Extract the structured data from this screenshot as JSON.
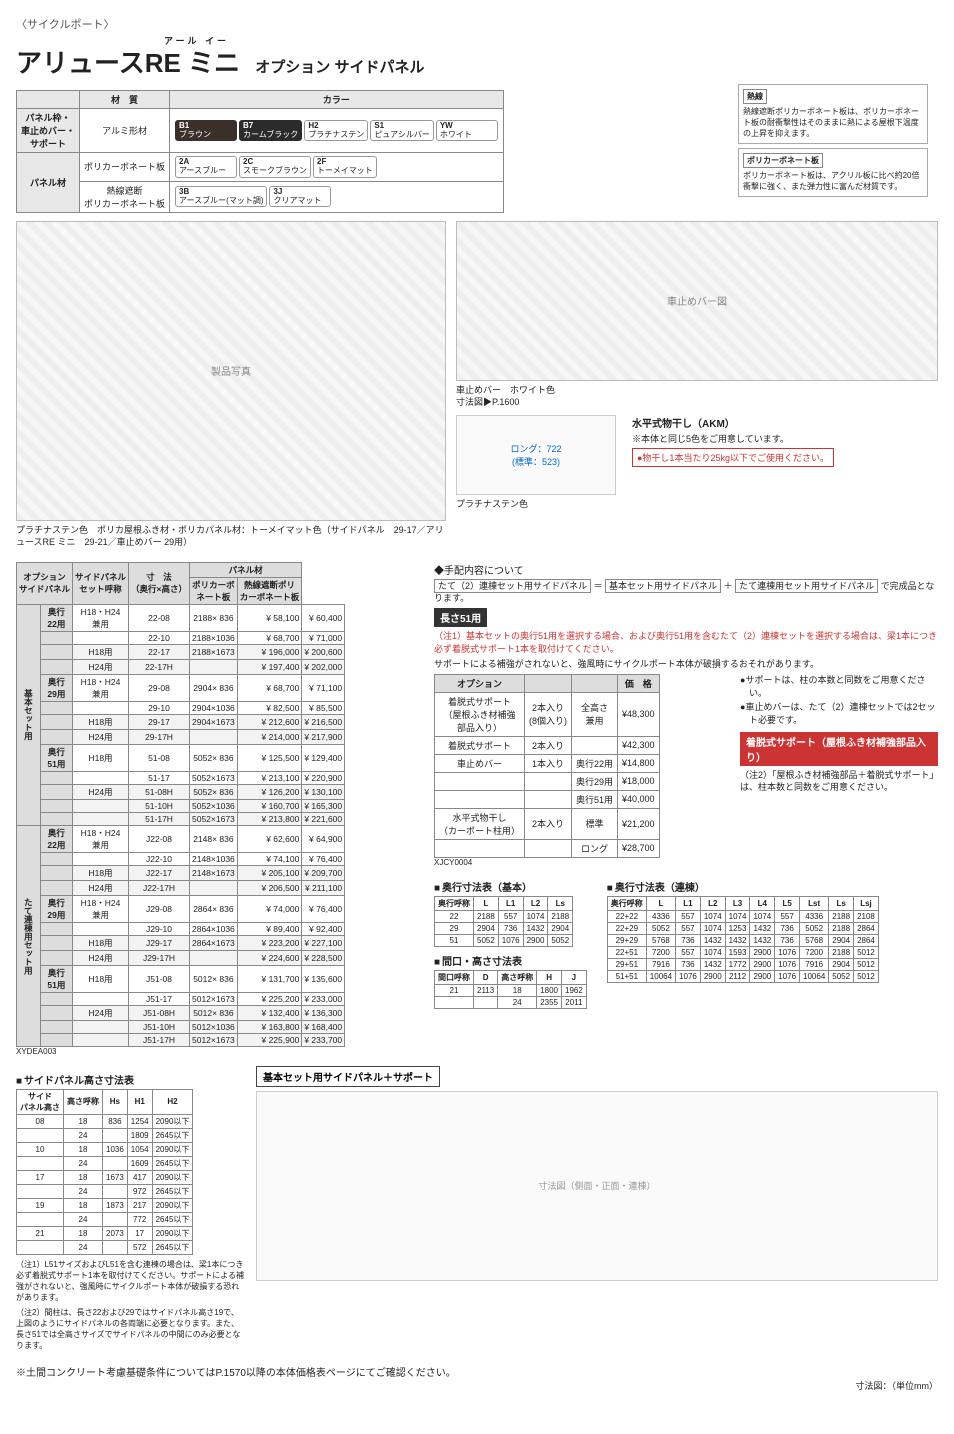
{
  "category": "〈サイクルポート〉",
  "title_ruby": "アール イー",
  "title_main": "アリュースRE ミニ",
  "title_sub": "オプション サイドパネル",
  "mat_table": {
    "headers": [
      "",
      "材　質",
      "カラー"
    ],
    "rows": [
      {
        "label": "パネル枠・\n車止めバー・\nサポート",
        "material": "アルミ形材",
        "chips": [
          {
            "code": "B1",
            "name": "ブラウン",
            "dark": true
          },
          {
            "code": "B7",
            "name": "カームブラック",
            "dark": true
          },
          {
            "code": "H2",
            "name": "プラチナステン"
          },
          {
            "code": "S1",
            "name": "ピュアシルバー"
          },
          {
            "code": "YW",
            "name": "ホワイト"
          }
        ]
      },
      {
        "label": "パネル材",
        "material": "ポリカーボネート板",
        "chips": [
          {
            "code": "2A",
            "name": "アースブルー"
          },
          {
            "code": "2C",
            "name": "スモークブラウン"
          },
          {
            "code": "2F",
            "name": "トーメイマット"
          }
        ]
      },
      {
        "label": "",
        "material": "熱線遮断\nポリカーボネート板",
        "chips": [
          {
            "code": "3B",
            "name": "アースブルー(マット調)"
          },
          {
            "code": "3J",
            "name": "クリアマット"
          }
        ]
      }
    ]
  },
  "legend": [
    {
      "title": "熱線",
      "body": "熱線遮断ポリカーボネート板は、ポリカーボネート板の耐衝撃性はそのままに熱による屋根下温度の上昇を抑えます。"
    },
    {
      "title": "ポリカーボネート板",
      "body": "ポリカーボネート板は、アクリル板に比べ約20倍衝撃に強く、また弾力性に富んだ材質です。"
    }
  ],
  "hero_caption": "プラチナステン色　ポリカ屋根ふき材・ポリカパネル材：トーメイマット色（サイドパネル　29-17／アリュースRE ミニ　29-21／車止めバー 29用）",
  "barstop": {
    "label": "車止めバー",
    "color": "ホワイト色",
    "ref": "寸法図▶P.1600"
  },
  "hoshi": {
    "title": "水平式物干し（AKM）",
    "note": "※本体と同じ5色をご用意しています。",
    "long": "ロング：722",
    "std": "(標準：523)",
    "color": "プラチナステン色",
    "warn": "●物干し1本当たり25kg以下でご使用ください。"
  },
  "price_header": {
    "opt": "オプション\nサイドパネル",
    "set": "サイドパネル\nセット呼称",
    "dim": "寸　法\n（奥行×高さ）",
    "panel": "パネル材",
    "pc": "ポリカーボ\nネート板",
    "hc": "熱線遮断ポリ\nカーボネート板"
  },
  "price_sections": [
    {
      "group": "基本セット用",
      "rows": [
        {
          "d": "奥行\n22用",
          "h": "H18・H24\n兼用",
          "n": "22-08",
          "dim": "2188× 836",
          "p": "58,100",
          "q": "60,400"
        },
        {
          "d": "",
          "h": "",
          "n": "22-10",
          "dim": "2188×1036",
          "p": "68,700",
          "q": "71,000"
        },
        {
          "d": "",
          "h": "H18用",
          "n": "22-17",
          "dim": "2188×1673",
          "p": "196,000",
          "q": "200,600",
          "gray": true
        },
        {
          "d": "",
          "h": "H24用",
          "n": "22-17H",
          "dim": "",
          "p": "197,400",
          "q": "202,000",
          "gray": true
        },
        {
          "d": "奥行\n29用",
          "h": "H18・H24\n兼用",
          "n": "29-08",
          "dim": "2904× 836",
          "p": "68,700",
          "q": "71,100"
        },
        {
          "d": "",
          "h": "",
          "n": "29-10",
          "dim": "2904×1036",
          "p": "82,500",
          "q": "85,500"
        },
        {
          "d": "",
          "h": "H18用",
          "n": "29-17",
          "dim": "2904×1673",
          "p": "212,600",
          "q": "216,500",
          "gray": true
        },
        {
          "d": "",
          "h": "H24用",
          "n": "29-17H",
          "dim": "",
          "p": "214,000",
          "q": "217,900",
          "gray": true
        },
        {
          "d": "奥行\n51用",
          "h": "H18用",
          "n": "51-08",
          "dim": "5052× 836",
          "p": "125,500",
          "q": "129,400"
        },
        {
          "d": "",
          "h": "",
          "n": "51-17",
          "dim": "5052×1673",
          "p": "213,100",
          "q": "220,900"
        },
        {
          "d": "",
          "h": "H24用",
          "n": "51-08H",
          "dim": "5052× 836",
          "p": "126,200",
          "q": "130,100",
          "gray": true
        },
        {
          "d": "",
          "h": "",
          "n": "51-10H",
          "dim": "5052×1036",
          "p": "160,700",
          "q": "165,300",
          "gray": true
        },
        {
          "d": "",
          "h": "",
          "n": "51-17H",
          "dim": "5052×1673",
          "p": "213,800",
          "q": "221,600",
          "gray": true
        }
      ]
    },
    {
      "group": "たて連棟用セット用",
      "rows": [
        {
          "d": "奥行\n22用",
          "h": "H18・H24\n兼用",
          "n": "J22-08",
          "dim": "2148× 836",
          "p": "62,600",
          "q": "64,900"
        },
        {
          "d": "",
          "h": "",
          "n": "J22-10",
          "dim": "2148×1036",
          "p": "74,100",
          "q": "76,400"
        },
        {
          "d": "",
          "h": "H18用",
          "n": "J22-17",
          "dim": "2148×1673",
          "p": "205,100",
          "q": "209,700",
          "gray": true
        },
        {
          "d": "",
          "h": "H24用",
          "n": "J22-17H",
          "dim": "",
          "p": "206,500",
          "q": "211,100",
          "gray": true
        },
        {
          "d": "奥行\n29用",
          "h": "H18・H24\n兼用",
          "n": "J29-08",
          "dim": "2864× 836",
          "p": "74,000",
          "q": "76,400"
        },
        {
          "d": "",
          "h": "",
          "n": "J29-10",
          "dim": "2864×1036",
          "p": "89,400",
          "q": "92,400"
        },
        {
          "d": "",
          "h": "H18用",
          "n": "J29-17",
          "dim": "2864×1673",
          "p": "223,200",
          "q": "227,100",
          "gray": true
        },
        {
          "d": "",
          "h": "H24用",
          "n": "J29-17H",
          "dim": "",
          "p": "224,600",
          "q": "228,500",
          "gray": true
        },
        {
          "d": "奥行\n51用",
          "h": "H18用",
          "n": "J51-08",
          "dim": "5012× 836",
          "p": "131,700",
          "q": "135,600"
        },
        {
          "d": "",
          "h": "",
          "n": "J51-17",
          "dim": "5012×1673",
          "p": "225,200",
          "q": "233,000"
        },
        {
          "d": "",
          "h": "H24用",
          "n": "J51-08H",
          "dim": "5012× 836",
          "p": "132,400",
          "q": "136,300",
          "gray": true
        },
        {
          "d": "",
          "h": "",
          "n": "J51-10H",
          "dim": "5012×1036",
          "p": "163,800",
          "q": "168,400",
          "gray": true
        },
        {
          "d": "",
          "h": "",
          "n": "J51-17H",
          "dim": "5012×1673",
          "p": "225,900",
          "q": "233,700",
          "gray": true
        }
      ]
    }
  ],
  "price_code": "XYDEA003",
  "tehaina": {
    "title": "◆手配内容について",
    "boxes": [
      "たて（2）連棟セット用サイドパネル",
      "基本セット用サイドパネル",
      "たて連棟用セット用サイドパネル"
    ],
    "tail": "で完成品となります。"
  },
  "len51_head": "長さ51用",
  "note1": "（注1）基本セットの奥行51用を選択する場合、および奥行51用を含むたて（2）連棟セットを選択する場合は、梁1本につき必ず着脱式サポート1本を取付けてください。",
  "note1b": "サポートによる補強がされないと、強風時にサイクルポート本体が破損するおそれがあります。",
  "opt_tbl": {
    "headers": [
      "オプション",
      "",
      "",
      "価　格"
    ],
    "rows": [
      [
        "着脱式サポート\n（屋根ふき材補強\n部品入り）",
        "2本入り\n(8個入り)",
        "全高さ\n兼用",
        "¥48,300"
      ],
      [
        "着脱式サポート",
        "2本入り",
        "",
        "¥42,300"
      ],
      [
        "車止めバー",
        "1本入り",
        "奥行22用",
        "¥14,800"
      ],
      [
        "",
        "",
        "奥行29用",
        "¥18,000"
      ],
      [
        "",
        "",
        "奥行51用",
        "¥40,000"
      ],
      [
        "水平式物干し\n（カーポート柱用）",
        "2本入り",
        "標準",
        "¥21,200"
      ],
      [
        "",
        "",
        "ロング",
        "¥28,700"
      ]
    ],
    "code": "XJCY0004"
  },
  "bullets": [
    "サポートは、柱の本数と同数をご用意ください。",
    "車止めバーは、たて（2）連棟セットでは2セット必要です。"
  ],
  "red_support": "着脱式サポート（屋根ふき材補強部品入り）",
  "note2": "（注2）「屋根ふき材補強部品＋着脱式サポート」は、柱本数と同数をご用意ください。",
  "dim_depth_basic": {
    "title": "奥行寸法表（基本）",
    "cols": [
      "奥行呼称",
      "L",
      "L1",
      "L2",
      "Ls"
    ],
    "rows": [
      [
        "22",
        "2188",
        "557",
        "1074",
        "2188"
      ],
      [
        "29",
        "2904",
        "736",
        "1432",
        "2904"
      ],
      [
        "51",
        "5052",
        "1076",
        "2900",
        "5052"
      ]
    ]
  },
  "dim_depth_ren": {
    "title": "奥行寸法表（連棟）",
    "cols": [
      "奥行呼称",
      "L",
      "L1",
      "L2",
      "L3",
      "L4",
      "L5",
      "Lst",
      "Ls",
      "Lsj"
    ],
    "rows": [
      [
        "22+22",
        "4336",
        "557",
        "1074",
        "1074",
        "1074",
        "557",
        "4336",
        "2188",
        "2108"
      ],
      [
        "22+29",
        "5052",
        "557",
        "1074",
        "1253",
        "1432",
        "736",
        "5052",
        "2188",
        "2864"
      ],
      [
        "29+29",
        "5768",
        "736",
        "1432",
        "1432",
        "1432",
        "736",
        "5768",
        "2904",
        "2864"
      ],
      [
        "22+51",
        "7200",
        "557",
        "1074",
        "1593",
        "2900",
        "1076",
        "7200",
        "2188",
        "5012"
      ],
      [
        "29+51",
        "7916",
        "736",
        "1432",
        "1772",
        "2900",
        "1076",
        "7916",
        "2904",
        "5012"
      ],
      [
        "51+51",
        "10064",
        "1076",
        "2900",
        "2112",
        "2900",
        "1076",
        "10064",
        "5052",
        "5012"
      ]
    ]
  },
  "dim_width": {
    "title": "間口・高さ寸法表",
    "cols": [
      "間口呼称",
      "D",
      "高さ呼称",
      "H",
      "J"
    ],
    "rows": [
      [
        "21",
        "2113",
        "18",
        "1800",
        "1962"
      ],
      [
        "",
        "",
        "24",
        "2355",
        "2011"
      ]
    ]
  },
  "dim_panel": {
    "title": "サイドパネル高さ寸法表",
    "cols": [
      "サイド\nパネル高さ",
      "高さ呼称",
      "Hs",
      "H1",
      "H2"
    ],
    "rows": [
      [
        "08",
        "18",
        "836",
        "1254",
        "2090以下"
      ],
      [
        "",
        "24",
        "",
        "1809",
        "2645以下"
      ],
      [
        "10",
        "18",
        "1036",
        "1054",
        "2090以下"
      ],
      [
        "",
        "24",
        "",
        "1609",
        "2645以下"
      ],
      [
        "17",
        "18",
        "1673",
        "417",
        "2090以下"
      ],
      [
        "",
        "24",
        "",
        "972",
        "2645以下"
      ],
      [
        "19",
        "18",
        "1873",
        "217",
        "2090以下"
      ],
      [
        "",
        "24",
        "",
        "772",
        "2645以下"
      ],
      [
        "21",
        "18",
        "2073",
        "17",
        "2090以下"
      ],
      [
        "",
        "24",
        "",
        "572",
        "2645以下"
      ]
    ]
  },
  "foot_notes": [
    "（注1）L51サイズおよびL51を含む連棟の場合は、梁1本につき必ず着脱式サポート1本を取付けてください。サポートによる補強がされないと、強風時にサイクルポート本体が破損する恐れがあります。",
    "（注2）間柱は、長さ22および29ではサイドパネル高さ19で、上図のようにサイドパネルの各両端に必要となります。また、長さ51では全高さサイズでサイドパネルの中間にのみ必要となります。"
  ],
  "diag_title": "基本セット用サイドパネル＋サポート",
  "footer": "※土間コンクリート考慮基礎条件についてはP.1570以降の本体価格表ページにてご確認ください。",
  "unit": "寸法図：（単位mm）"
}
